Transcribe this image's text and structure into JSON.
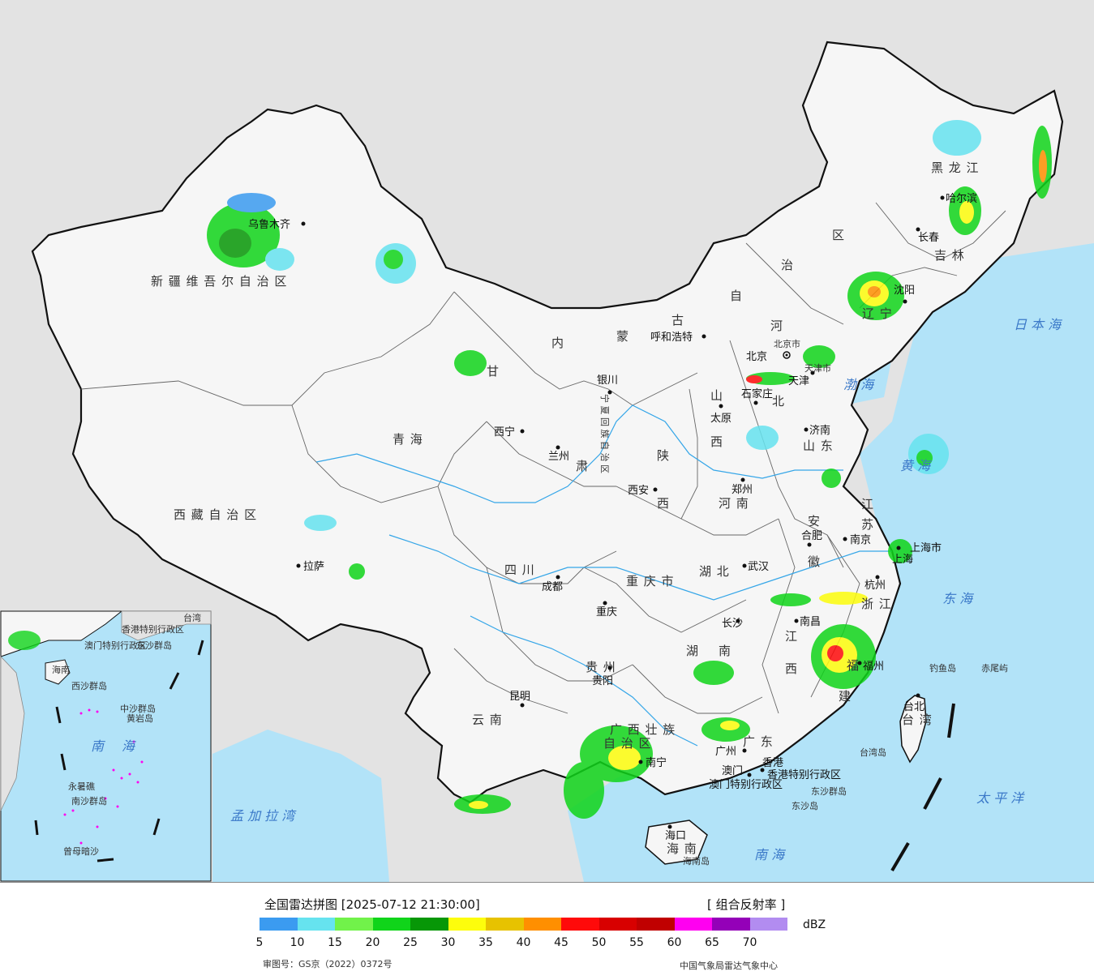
{
  "legend": {
    "title": "全国雷达拼图 [2025-07-12 21:30:00]",
    "product": "[ 组合反射率 ]",
    "unit": "dBZ",
    "colors": [
      "#3b9bf0",
      "#66e3ef",
      "#71f24a",
      "#10d41a",
      "#079707",
      "#fdfd0c",
      "#e7c200",
      "#ff8f00",
      "#ff0a0a",
      "#d80000",
      "#c00000",
      "#ff00f0",
      "#9400b8",
      "#b28cf0"
    ],
    "ticks": [
      "5",
      "10",
      "15",
      "20",
      "25",
      "30",
      "35",
      "40",
      "45",
      "50",
      "55",
      "60",
      "65",
      "70"
    ],
    "review_no": "审图号：GS京（2022）0372号",
    "agency": "中国气象局雷达气象中心"
  },
  "map": {
    "colors": {
      "sea": "#b2e3f8",
      "land": "#f6f6f6",
      "foreign": "#e3e3e3",
      "border": "#111111",
      "river": "#35a6e8"
    },
    "provinces": [
      {
        "name": "新 疆 维 吾 尔 自 治 区"
      },
      {
        "name": "西 藏 自 治 区"
      },
      {
        "name": "青 海"
      },
      {
        "name": "甘"
      },
      {
        "name": "肃"
      },
      {
        "name": "内"
      },
      {
        "name": "蒙"
      },
      {
        "name": "古"
      },
      {
        "name": "自"
      },
      {
        "name": "治"
      },
      {
        "name": "区"
      },
      {
        "name": "黑 龙 江"
      },
      {
        "name": "吉 林"
      },
      {
        "name": "辽 宁"
      },
      {
        "name": "河"
      },
      {
        "name": "北"
      },
      {
        "name": "山"
      },
      {
        "name": "西"
      },
      {
        "name": "山 东"
      },
      {
        "name": "陕"
      },
      {
        "name": "西"
      },
      {
        "name": "河 南"
      },
      {
        "name": "江"
      },
      {
        "name": "苏"
      },
      {
        "name": "安"
      },
      {
        "name": "徽"
      },
      {
        "name": "四 川"
      },
      {
        "name": "重 庆 市"
      },
      {
        "name": "湖 北"
      },
      {
        "name": "浙 江"
      },
      {
        "name": "江"
      },
      {
        "name": "西"
      },
      {
        "name": "湖"
      },
      {
        "name": "南"
      },
      {
        "name": "贵 州"
      },
      {
        "name": "云 南"
      },
      {
        "name": "福"
      },
      {
        "name": "建"
      },
      {
        "name": "广 西 壮 族"
      },
      {
        "name": "自 治 区"
      },
      {
        "name": "广 东"
      },
      {
        "name": "海 南"
      },
      {
        "name": "台 湾"
      },
      {
        "name": "宁 夏 回 族 自 治 区"
      }
    ],
    "cities": [
      {
        "name": "乌鲁木齐"
      },
      {
        "name": "拉萨"
      },
      {
        "name": "西宁"
      },
      {
        "name": "兰州"
      },
      {
        "name": "银川"
      },
      {
        "name": "呼和浩特"
      },
      {
        "name": "北京"
      },
      {
        "name": "天津"
      },
      {
        "name": "石家庄"
      },
      {
        "name": "太原"
      },
      {
        "name": "济南"
      },
      {
        "name": "郑州"
      },
      {
        "name": "西安"
      },
      {
        "name": "成都"
      },
      {
        "name": "重庆"
      },
      {
        "name": "武汉"
      },
      {
        "name": "合肥"
      },
      {
        "name": "南京"
      },
      {
        "name": "上海"
      },
      {
        "name": "杭州"
      },
      {
        "name": "南昌"
      },
      {
        "name": "长沙"
      },
      {
        "name": "贵阳"
      },
      {
        "name": "昆明"
      },
      {
        "name": "南宁"
      },
      {
        "name": "广州"
      },
      {
        "name": "澳门"
      },
      {
        "name": "香港"
      },
      {
        "name": "福州"
      },
      {
        "name": "台北"
      },
      {
        "name": "海口"
      },
      {
        "name": "哈尔滨"
      },
      {
        "name": "长春"
      },
      {
        "name": "沈阳"
      }
    ],
    "seas": [
      {
        "name": "日 本 海"
      },
      {
        "name": "渤 海"
      },
      {
        "name": "黄 海"
      },
      {
        "name": "东 海"
      },
      {
        "name": "太 平 洋"
      },
      {
        "name": "南 海"
      },
      {
        "name": "孟 加 拉 湾"
      }
    ],
    "other_labels": [
      {
        "name": "上海市"
      },
      {
        "name": "天津市"
      },
      {
        "name": "北京市"
      },
      {
        "name": "香港特别行政区"
      },
      {
        "name": "澳门特别行政区"
      },
      {
        "name": "东沙群岛"
      },
      {
        "name": "东沙岛"
      },
      {
        "name": "钓鱼岛"
      },
      {
        "name": "赤尾屿"
      },
      {
        "name": "台湾岛"
      },
      {
        "name": "海南岛"
      }
    ],
    "inset": {
      "labels": [
        {
          "name": "南"
        },
        {
          "name": "海"
        },
        {
          "name": "中沙群岛"
        },
        {
          "name": "南沙群岛"
        },
        {
          "name": "东沙群岛"
        },
        {
          "name": "香港特别行政区"
        },
        {
          "name": "澳门特别行政区"
        },
        {
          "name": "台湾"
        },
        {
          "name": "海南"
        },
        {
          "name": "西沙群岛"
        },
        {
          "name": "永暑礁"
        },
        {
          "name": "曾母暗沙"
        },
        {
          "name": "黄岩岛"
        }
      ]
    }
  }
}
